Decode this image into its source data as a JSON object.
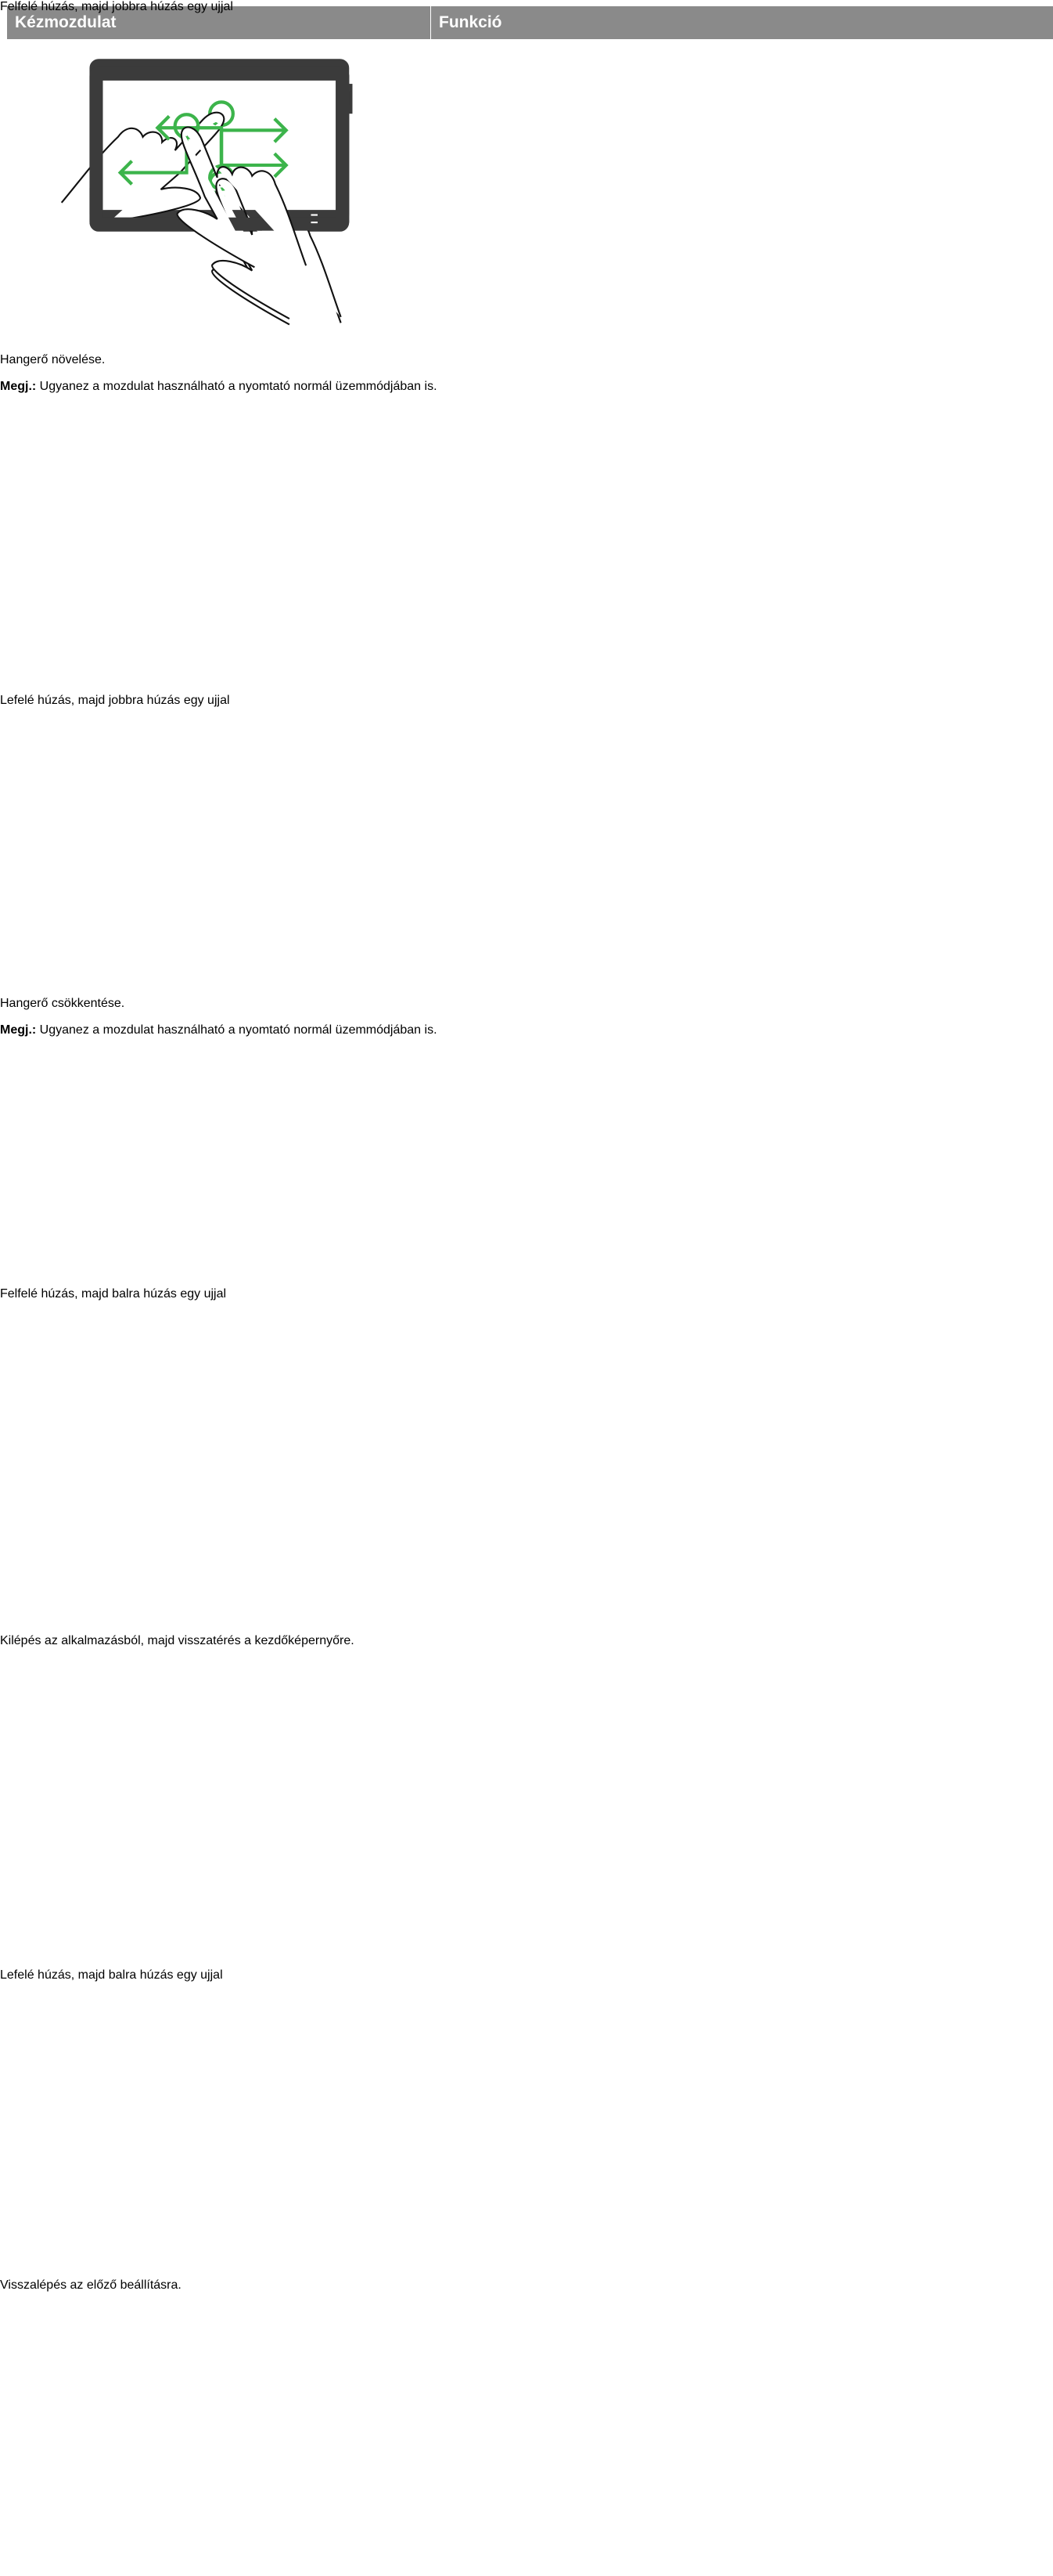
{
  "header": {
    "columns": [
      "Kézmozdulat",
      "Funkció"
    ]
  },
  "rows": [
    {
      "gesture": "Felfelé húzás, majd jobbra húzás egy ujjal",
      "function": "Hangerő növelése.",
      "note_label": "Megj.:",
      "note": "Ugyanez a mozdulat használható a nyomtató normál üzemmódjában is."
    },
    {
      "gesture": "Lefelé húzás, majd jobbra húzás egy ujjal",
      "function": "Hangerő csökkentése.",
      "note_label": "Megj.:",
      "note": "Ugyanez a mozdulat használható a nyomtató normál üzemmódjában is."
    },
    {
      "gesture": "Felfelé húzás, majd balra húzás egy ujjal",
      "function": "Kilépés az alkalmazásból, majd visszatérés a kezdőképernyőre."
    },
    {
      "gesture": "Lefelé húzás, majd balra húzás egy ujjal",
      "function": "Visszalépés az előző beállításra."
    }
  ]
}
